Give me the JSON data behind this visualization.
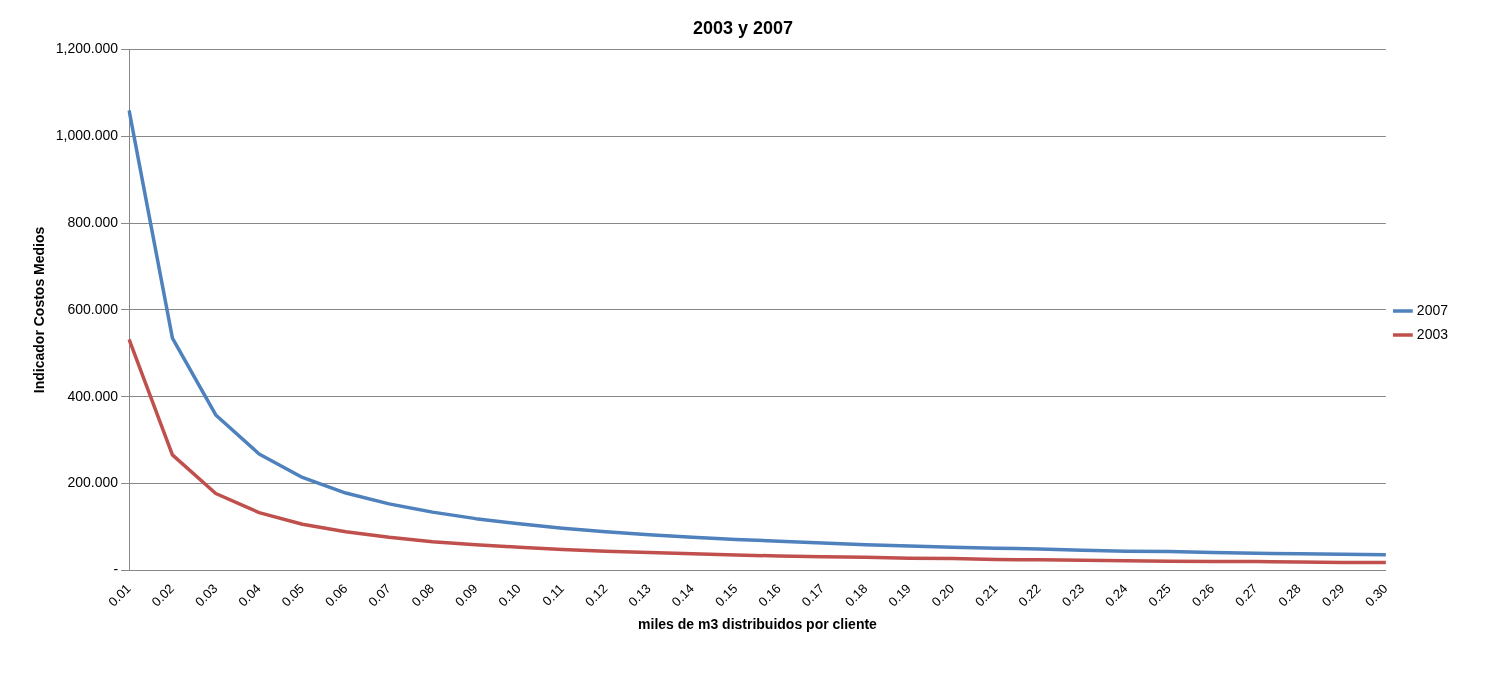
{
  "chart_data": {
    "type": "line",
    "title": "2003 y 2007",
    "xlabel": "miles de m3 distribuidos por cliente",
    "ylabel": "Indicador Costos Medios",
    "categories": [
      "0.01",
      "0.02",
      "0.03",
      "0.04",
      "0.05",
      "0.06",
      "0.07",
      "0.08",
      "0.09",
      "0.10",
      "0.11",
      "0.12",
      "0.13",
      "0.14",
      "0.15",
      "0.16",
      "0.17",
      "0.18",
      "0.19",
      "0.20",
      "0.21",
      "0.22",
      "0.23",
      "0.24",
      "0.25",
      "0.26",
      "0.27",
      "0.28",
      "0.29",
      "0.30"
    ],
    "series": [
      {
        "name": "2007",
        "color": "#4f81bd",
        "values": [
          1060,
          535,
          358,
          268,
          214,
          178,
          153,
          134,
          119,
          107,
          97,
          89,
          82,
          76,
          71,
          67,
          63,
          59,
          56,
          53,
          51,
          49,
          46,
          44,
          43,
          41,
          39,
          38,
          37,
          36
        ]
      },
      {
        "name": "2003",
        "color": "#c0504d",
        "values": [
          532,
          266,
          177,
          133,
          106,
          89,
          76,
          66,
          59,
          53,
          48,
          44,
          41,
          38,
          35,
          33,
          31,
          30,
          28,
          27,
          25,
          24,
          23,
          22,
          21,
          20,
          20,
          19,
          18,
          18
        ]
      }
    ],
    "ylim": [
      0,
      1200
    ],
    "yticks": [
      {
        "value": 0,
        "label": "-"
      },
      {
        "value": 200,
        "label": "200.000"
      },
      {
        "value": 400,
        "label": "400.000"
      },
      {
        "value": 600,
        "label": "600.000"
      },
      {
        "value": 800,
        "label": "800.000"
      },
      {
        "value": 1000,
        "label": "1,000.000"
      },
      {
        "value": 1200,
        "label": "1,200.000"
      }
    ],
    "grid": "y",
    "legend": "right",
    "marker": "none",
    "line_style": "solid"
  }
}
